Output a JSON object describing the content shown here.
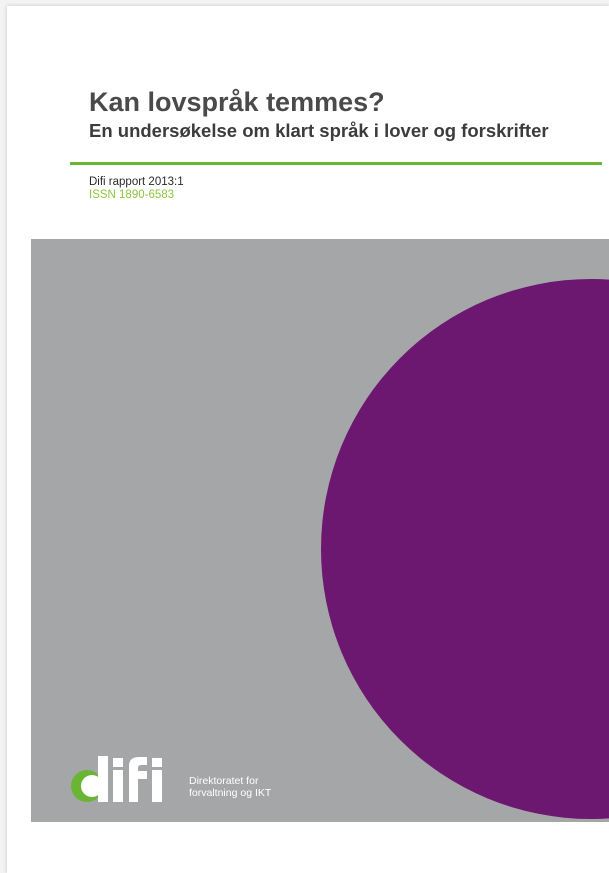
{
  "document": {
    "title": "Kan lovspråk temmes?",
    "subtitle": "En undersøkelse om klart språk i lover og forskrifter",
    "report_id": "Difi rapport 2013:1",
    "issn": "ISSN 1890-6583"
  },
  "logo": {
    "wordmark": "difi",
    "line1": "Direktoratet for",
    "line2": "forvaltning og IKT"
  },
  "colors": {
    "accent_green": "#6bb535",
    "issn_green": "#8cc63f",
    "cover_gray": "#a5a6a8",
    "circle_purple": "#6c1770",
    "title_gray": "#4a4a4a"
  }
}
